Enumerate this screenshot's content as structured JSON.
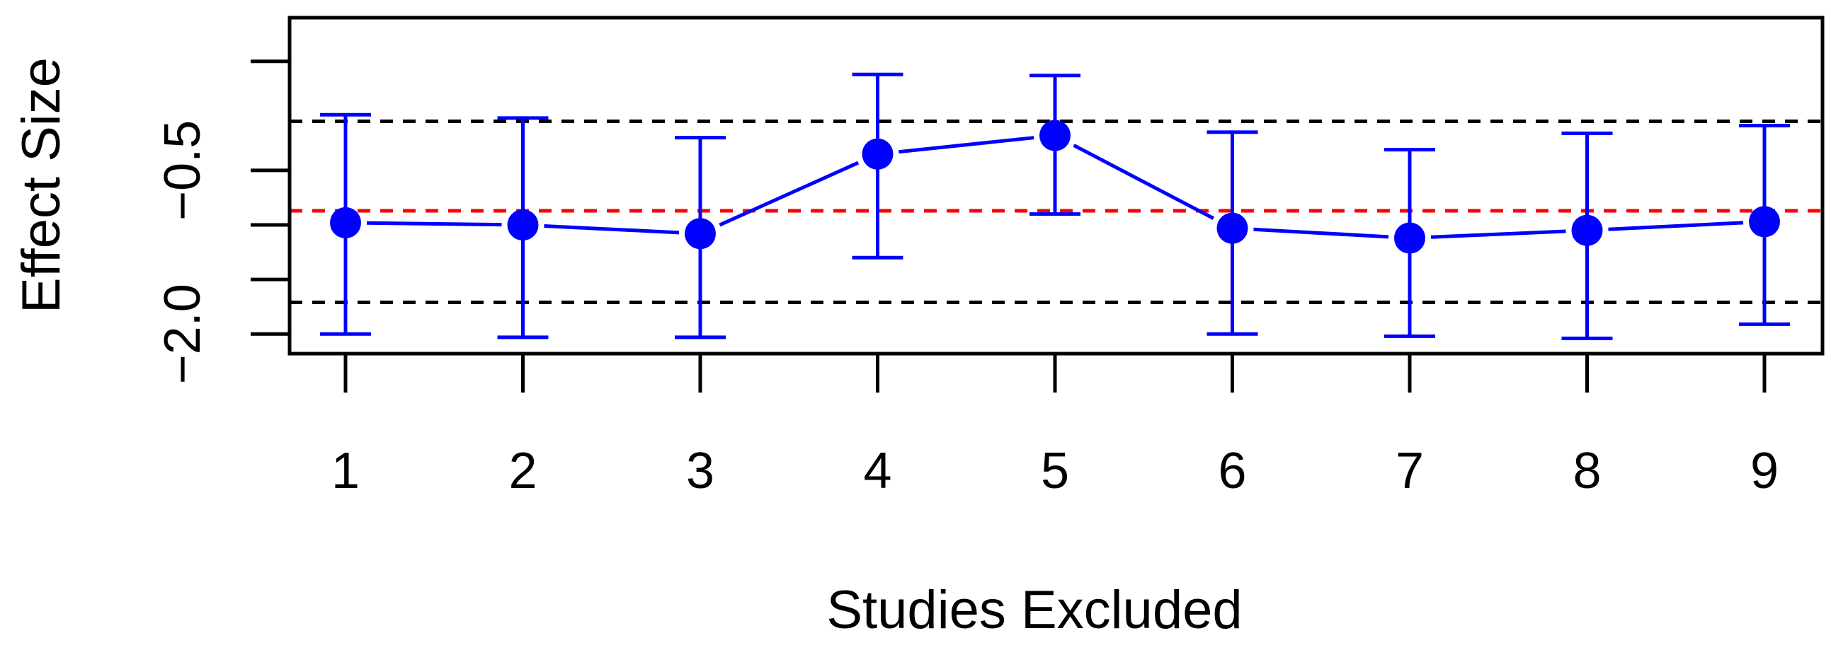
{
  "chart_data": {
    "type": "scatter",
    "subtype": "sensitivity-plot-with-error-bars",
    "xlabel": "Studies Excluded",
    "ylabel": "Effect Size",
    "categories": [
      "1",
      "2",
      "3",
      "4",
      "5",
      "6",
      "7",
      "8",
      "9"
    ],
    "x_ticks": [
      "1",
      "2",
      "3",
      "4",
      "5",
      "6",
      "7",
      "8",
      "9"
    ],
    "y_ticks": [
      {
        "value": -2.0,
        "label": "−2.0"
      },
      {
        "value": -0.5,
        "label": "−0.5"
      }
    ],
    "ylim": [
      -2.18,
      0.9
    ],
    "grid": false,
    "legend": "none",
    "series": [
      {
        "values": [
          -0.98,
          -1.0,
          -1.08,
          -0.35,
          -0.18,
          -1.03,
          -1.12,
          -1.05,
          -0.97
        ],
        "lower": [
          -2.0,
          -2.03,
          -2.03,
          -1.3,
          -0.9,
          -2.0,
          -2.02,
          -2.04,
          -1.91
        ],
        "upper": [
          0.01,
          -0.02,
          -0.2,
          0.38,
          0.37,
          -0.15,
          -0.31,
          -0.16,
          -0.09
        ],
        "color": "#0000ff",
        "connected": true
      }
    ],
    "reference_lines": [
      {
        "value": -0.05,
        "style": "dashed",
        "color": "#000000"
      },
      {
        "value": -0.87,
        "style": "dashed",
        "color": "#ff0000"
      },
      {
        "value": -1.71,
        "style": "dashed",
        "color": "#000000"
      }
    ]
  }
}
